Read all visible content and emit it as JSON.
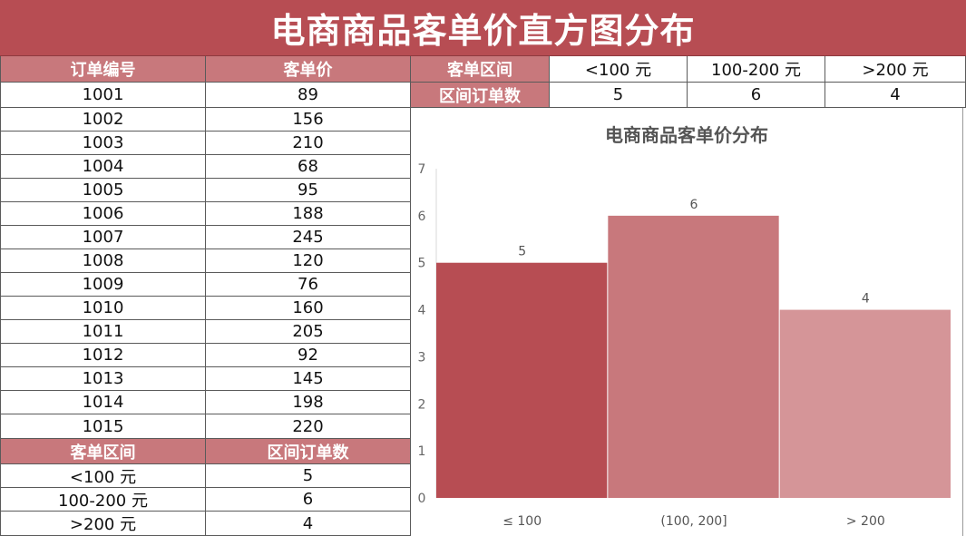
{
  "title": "电商商品客单价直方图分布",
  "orders_table": {
    "headers": [
      "订单编号",
      "客单价"
    ],
    "rows": [
      [
        "1001",
        "89"
      ],
      [
        "1002",
        "156"
      ],
      [
        "1003",
        "210"
      ],
      [
        "1004",
        "68"
      ],
      [
        "1005",
        "95"
      ],
      [
        "1006",
        "188"
      ],
      [
        "1007",
        "245"
      ],
      [
        "1008",
        "120"
      ],
      [
        "1009",
        "76"
      ],
      [
        "1010",
        "160"
      ],
      [
        "1011",
        "205"
      ],
      [
        "1012",
        "92"
      ],
      [
        "1013",
        "145"
      ],
      [
        "1014",
        "198"
      ],
      [
        "1015",
        "220"
      ]
    ]
  },
  "summary_table": {
    "headers": [
      "客单区间",
      "区间订单数"
    ],
    "rows": [
      [
        "<100 元",
        "5"
      ],
      [
        "100-200 元",
        "6"
      ],
      [
        ">200 元",
        "4"
      ]
    ]
  },
  "top_summary": {
    "row1_label": "客单区间",
    "row2_label": "区间订单数",
    "ranges": [
      "<100 元",
      "100-200 元",
      ">200 元"
    ],
    "counts": [
      "5",
      "6",
      "4"
    ]
  },
  "colors": {
    "title_bg": "#b74d53",
    "header_bg": "#c8787c",
    "bar1": "#b74d53",
    "bar2": "#c8787c",
    "bar3": "#d59598"
  },
  "chart_data": {
    "type": "bar",
    "title": "电商商品客单价分布",
    "categories": [
      "≤ 100",
      "(100, 200]",
      "> 200"
    ],
    "values": [
      5,
      6,
      4
    ],
    "data_labels": [
      "5",
      "6",
      "4"
    ],
    "ylim": [
      0,
      7
    ],
    "yticks": [
      "0",
      "1",
      "2",
      "3",
      "4",
      "5",
      "6",
      "7"
    ],
    "xlabel": "",
    "ylabel": "",
    "grid": false,
    "legend": "none"
  }
}
